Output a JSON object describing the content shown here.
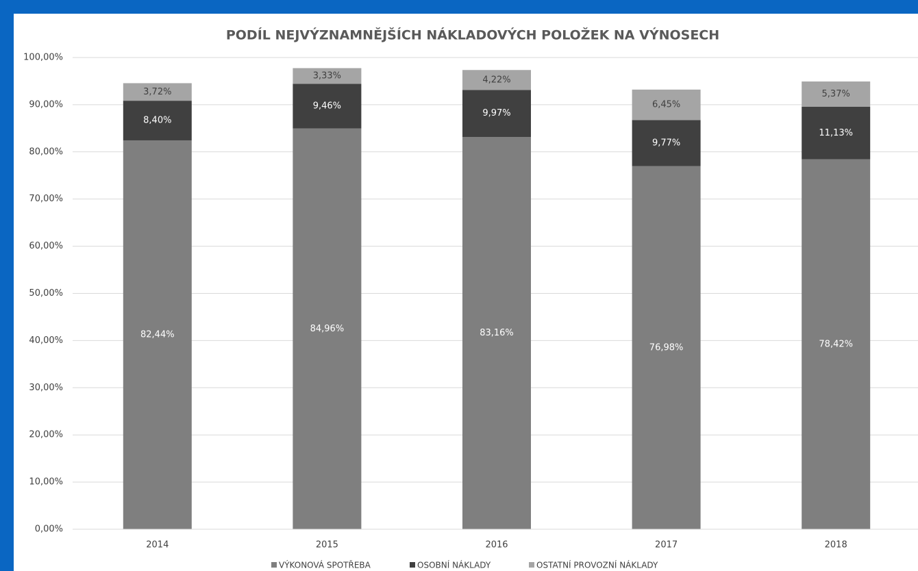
{
  "chart_data": {
    "type": "stacked_bar",
    "title": "PODÍL NEJVÝZNAMNĚJŠÍCH NÁKLADOVÝCH POLOŽEK NA VÝNOSECH",
    "categories": [
      "2014",
      "2015",
      "2016",
      "2017",
      "2018"
    ],
    "series": [
      {
        "name": "VÝKONOVÁ SPOTŘEBA",
        "color": "#7f7f7f",
        "values": [
          82.44,
          84.96,
          83.16,
          76.98,
          78.42
        ],
        "value_labels": [
          "82,44%",
          "84,96%",
          "83,16%",
          "76,98%",
          "78,42%"
        ]
      },
      {
        "name": "OSOBNÍ NÁKLADY",
        "color": "#404040",
        "values": [
          8.4,
          9.46,
          9.97,
          9.77,
          11.13
        ],
        "value_labels": [
          "8,40%",
          "9,46%",
          "9,97%",
          "9,77%",
          "11,13%"
        ]
      },
      {
        "name": "OSTATNÍ PROVOZNÍ NÁKLADY",
        "color": "#a5a5a5",
        "values": [
          3.72,
          3.33,
          4.22,
          6.45,
          5.37
        ],
        "value_labels": [
          "3,72%",
          "3,33%",
          "4,22%",
          "6,45%",
          "5,37%"
        ]
      }
    ],
    "ylim": [
      0,
      100
    ],
    "yticks": [
      {
        "value": 0,
        "label": "0,00%"
      },
      {
        "value": 10,
        "label": "10,00%"
      },
      {
        "value": 20,
        "label": "20,00%"
      },
      {
        "value": 30,
        "label": "30,00%"
      },
      {
        "value": 40,
        "label": "40,00%"
      },
      {
        "value": 50,
        "label": "50,00%"
      },
      {
        "value": 60,
        "label": "60,00%"
      },
      {
        "value": 70,
        "label": "70,00%"
      },
      {
        "value": 80,
        "label": "80,00%"
      },
      {
        "value": 90,
        "label": "90,00%"
      },
      {
        "value": 100,
        "label": "100,00%"
      }
    ],
    "grid": true,
    "legend": "bottom"
  }
}
